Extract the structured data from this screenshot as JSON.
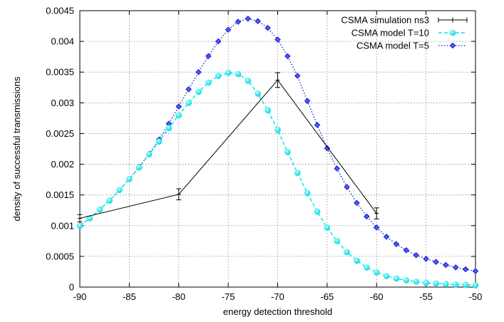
{
  "chart_data": {
    "type": "line",
    "xlabel": "energy detection threshold",
    "ylabel": "density of successful transmissions",
    "xlim": [
      -90,
      -50
    ],
    "ylim": [
      0,
      0.0045
    ],
    "x_ticks": [
      "-90",
      "-85",
      "-80",
      "-75",
      "-70",
      "-65",
      "-60",
      "-55",
      "-50"
    ],
    "y_ticks": [
      "0",
      "0.0005",
      "0.001",
      "0.0015",
      "0.002",
      "0.0025",
      "0.003",
      "0.0035",
      "0.004",
      "0.0045"
    ],
    "grid": true,
    "legend_position": "top-right",
    "series": [
      {
        "name": "CSMA simulation ns3",
        "color": "#000000",
        "style": "solid-errorbars",
        "x": [
          -90,
          -80,
          -70,
          -60
        ],
        "y": [
          0.00112,
          0.00151,
          0.00337,
          0.0012
        ],
        "err": [
          6e-05,
          9e-05,
          0.00012,
          9e-05
        ]
      },
      {
        "name": "CSMA model T=10",
        "color": "#00e5e5",
        "style": "dashed-circles",
        "x": [
          -90,
          -89,
          -88,
          -87,
          -86,
          -85,
          -84,
          -83,
          -82,
          -81,
          -80,
          -79,
          -78,
          -77,
          -76,
          -75,
          -74,
          -73,
          -72,
          -71,
          -70,
          -69,
          -68,
          -67,
          -66,
          -65,
          -64,
          -63,
          -62,
          -61,
          -60,
          -59,
          -58,
          -57,
          -56,
          -55,
          -54,
          -53,
          -52,
          -51,
          -50
        ],
        "y": [
          0.001,
          0.00112,
          0.00126,
          0.00141,
          0.00158,
          0.00176,
          0.00195,
          0.00216,
          0.00237,
          0.00259,
          0.0028,
          0.003,
          0.00318,
          0.00333,
          0.00344,
          0.00349,
          0.00347,
          0.00336,
          0.00315,
          0.00288,
          0.00256,
          0.0022,
          0.00186,
          0.00153,
          0.00123,
          0.00097,
          0.00075,
          0.00057,
          0.00043,
          0.00032,
          0.00024,
          0.00018,
          0.00014,
          0.00011,
          9e-05,
          7e-05,
          6e-05,
          5e-05,
          4e-05,
          4e-05,
          3e-05
        ]
      },
      {
        "name": "CSMA model T=5",
        "color": "#1a1acc",
        "style": "dotted-diamonds",
        "x": [
          -90,
          -89,
          -88,
          -87,
          -86,
          -85,
          -84,
          -83,
          -82,
          -81,
          -80,
          -79,
          -78,
          -77,
          -76,
          -75,
          -74,
          -73,
          -72,
          -71,
          -70,
          -69,
          -68,
          -67,
          -66,
          -65,
          -64,
          -63,
          -62,
          -61,
          -60,
          -59,
          -58,
          -57,
          -56,
          -55,
          -54,
          -53,
          -52,
          -51,
          -50
        ],
        "y": [
          0.001,
          0.00112,
          0.00126,
          0.00141,
          0.00158,
          0.00176,
          0.00196,
          0.00217,
          0.0024,
          0.00266,
          0.00294,
          0.00322,
          0.0035,
          0.00376,
          0.004,
          0.00419,
          0.00432,
          0.00437,
          0.00433,
          0.00422,
          0.00403,
          0.00376,
          0.00344,
          0.00303,
          0.00264,
          0.00226,
          0.00193,
          0.00163,
          0.00137,
          0.00115,
          0.00097,
          0.00082,
          0.0007,
          0.0006,
          0.00052,
          0.00046,
          0.00041,
          0.00036,
          0.00032,
          0.00029,
          0.00026
        ]
      }
    ]
  }
}
